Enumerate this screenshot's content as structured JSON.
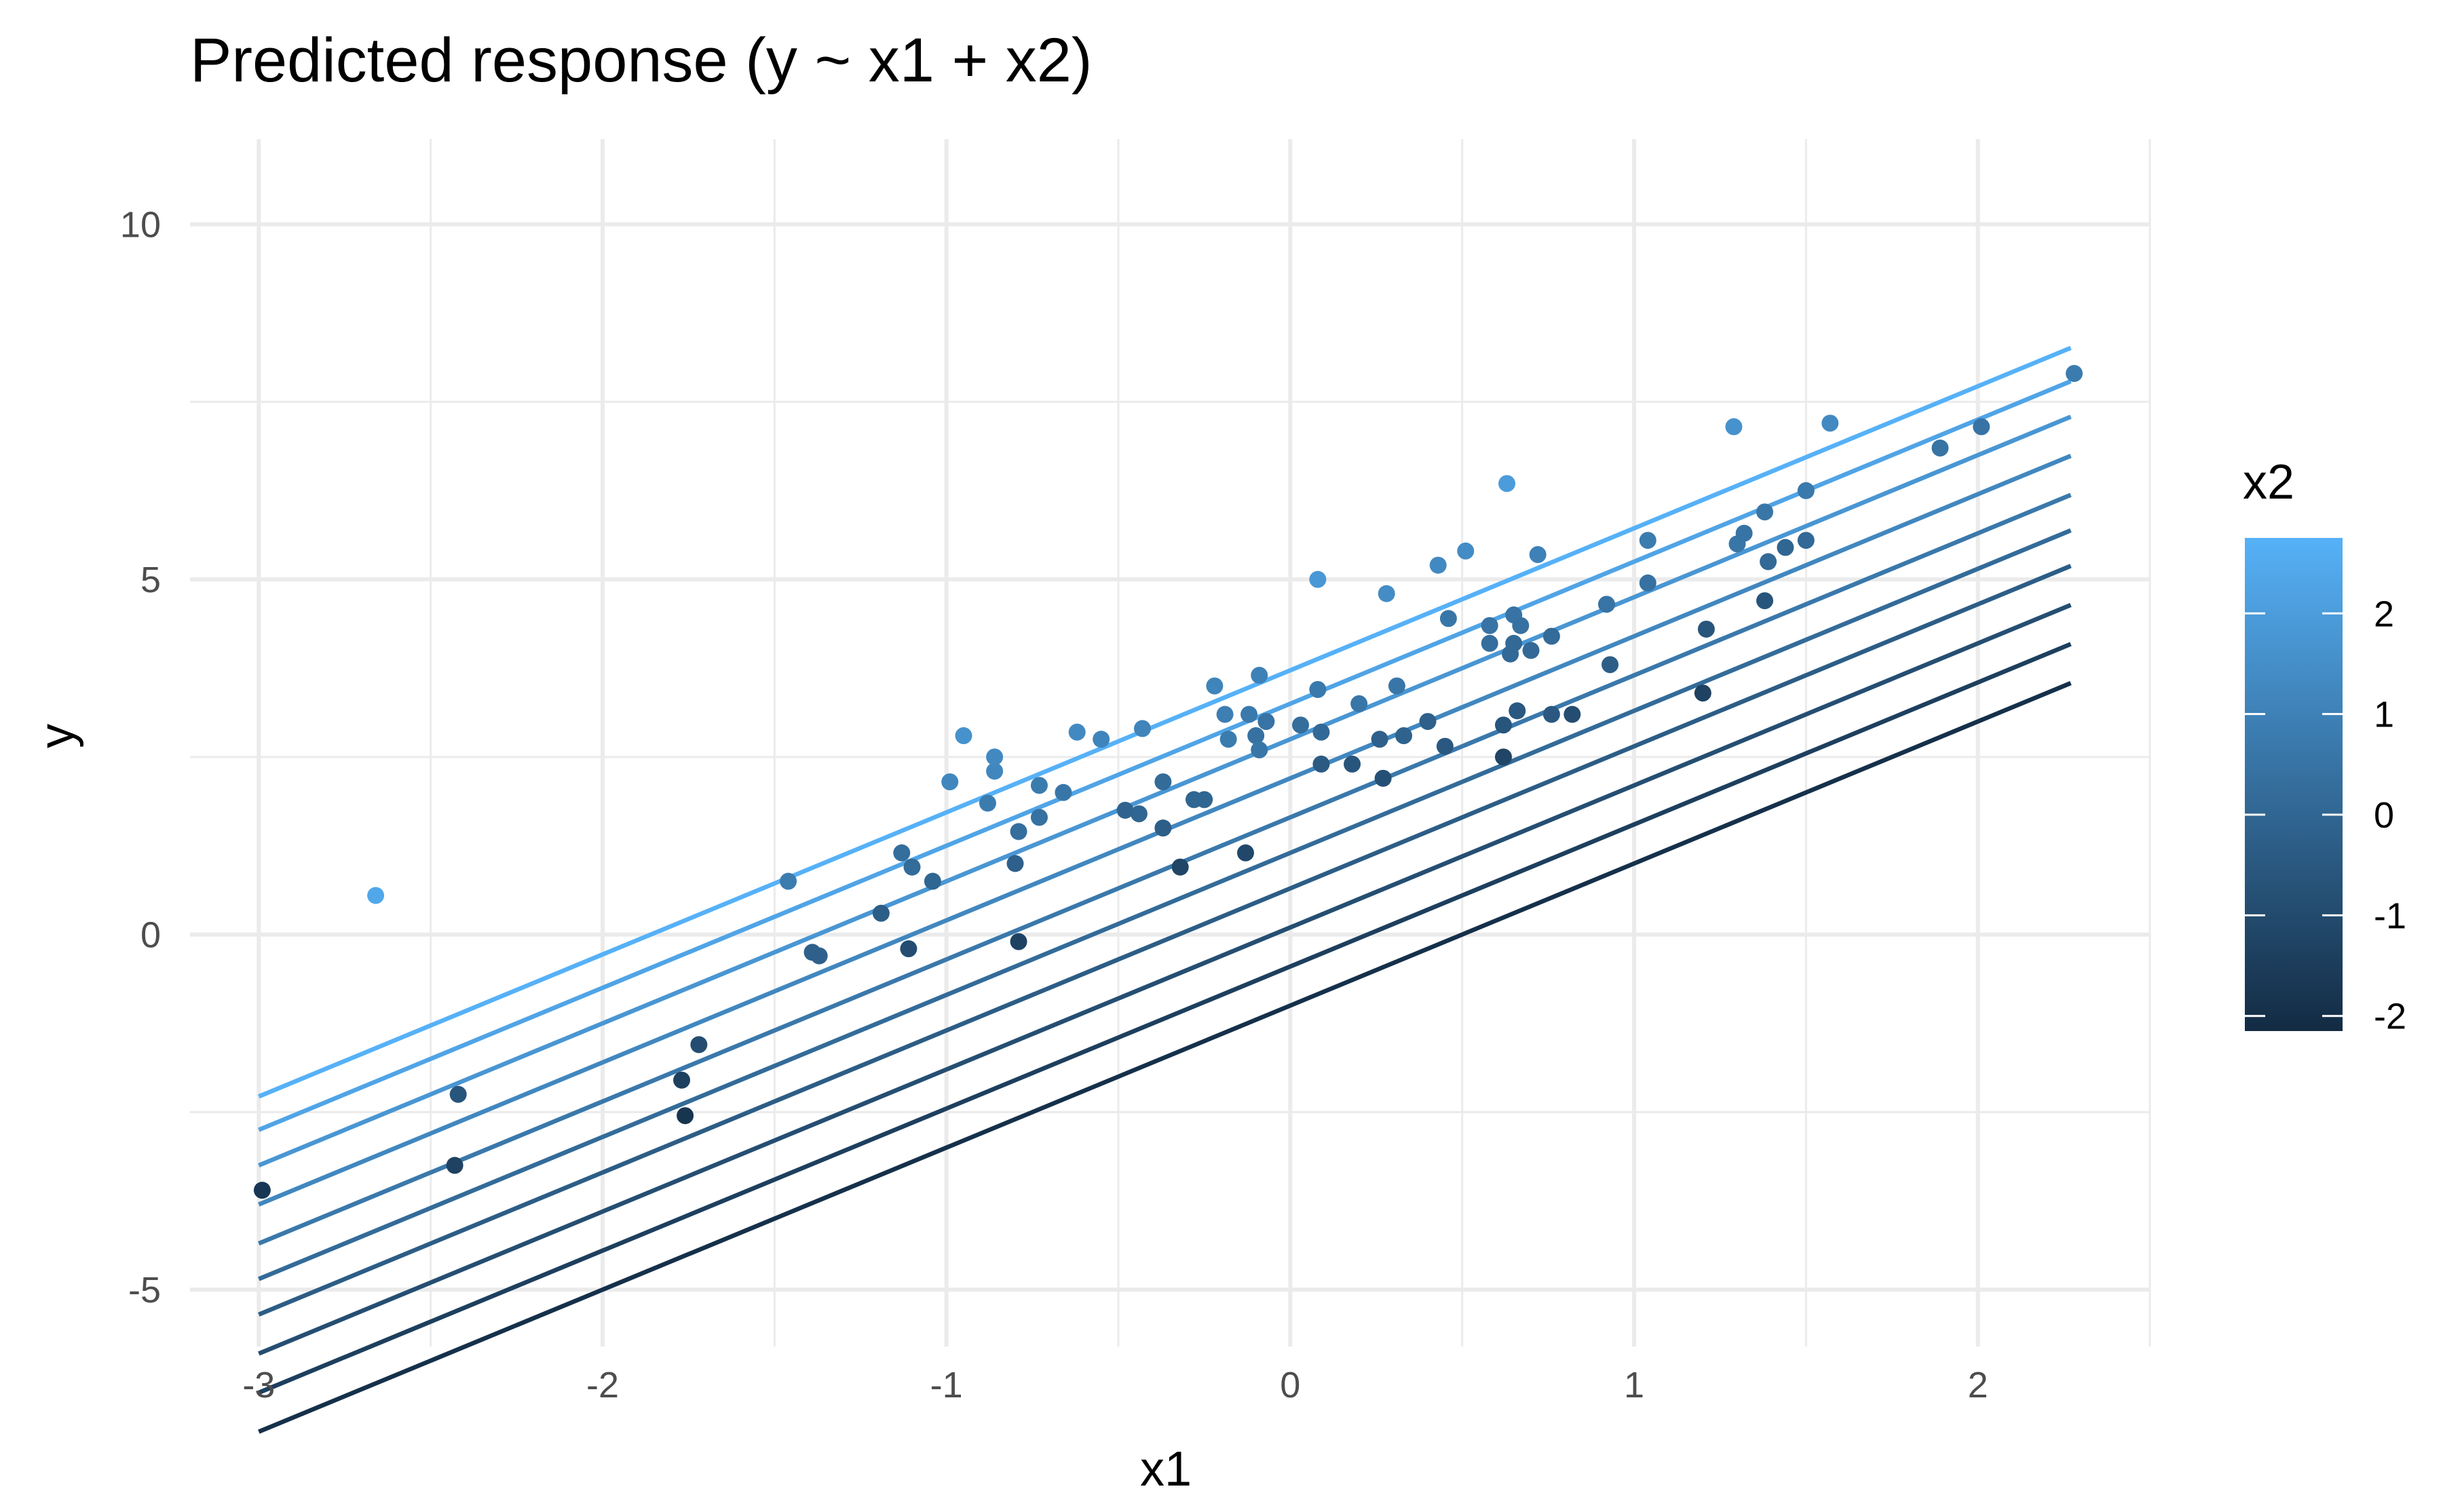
{
  "chart_data": {
    "type": "scatter",
    "title": "Predicted response (y ~ x1 + x2)",
    "xlabel": "x1",
    "ylabel": "y",
    "xlim": [
      -3.2,
      2.5
    ],
    "ylim": [
      -5.8,
      11.2
    ],
    "x_ticks": [
      -3,
      -2,
      -1,
      0,
      1,
      2
    ],
    "x_tick_labels": [
      "-3",
      "-2",
      "-1",
      "0",
      "1",
      "2"
    ],
    "y_ticks": [
      -5,
      0,
      5,
      10
    ],
    "y_tick_labels": [
      "-5",
      "0",
      "5",
      "10"
    ],
    "grid": true,
    "legend": {
      "title": "x2",
      "position": "right",
      "type": "colorbar",
      "range": [
        -2.15,
        2.75
      ],
      "ticks": [
        2,
        1,
        0,
        -1,
        -2
      ],
      "tick_labels": [
        "2",
        "1",
        "0",
        "-1",
        "-2"
      ],
      "low_color": "#132b43",
      "high_color": "#56b1f7"
    },
    "lines": {
      "x_range": [
        -3,
        2.27
      ],
      "slope": 2,
      "intercept_base": 0.97,
      "x2_coef": 1,
      "x2_levels": [
        -1.97,
        -1.42,
        -0.87,
        -0.32,
        0.18,
        0.68,
        1.23,
        1.78,
        2.28,
        2.75
      ]
    },
    "points": [
      {
        "x": -2.99,
        "y": -3.6,
        "x2": -1.7
      },
      {
        "x": -2.66,
        "y": 0.55,
        "x2": 2.4
      },
      {
        "x": -2.43,
        "y": -3.25,
        "x2": -1.3
      },
      {
        "x": -2.42,
        "y": -2.25,
        "x2": -0.6
      },
      {
        "x": -1.77,
        "y": -2.05,
        "x2": -1.4
      },
      {
        "x": -1.76,
        "y": -2.55,
        "x2": -1.8
      },
      {
        "x": -1.72,
        "y": -1.55,
        "x2": -0.9
      },
      {
        "x": -1.46,
        "y": 0.75,
        "x2": 0.8
      },
      {
        "x": -1.39,
        "y": -0.25,
        "x2": -0.2
      },
      {
        "x": -1.37,
        "y": -0.3,
        "x2": -0.2
      },
      {
        "x": -1.19,
        "y": 0.3,
        "x2": -0.3
      },
      {
        "x": -1.13,
        "y": 1.15,
        "x2": 0.3
      },
      {
        "x": -1.11,
        "y": -0.2,
        "x2": -0.9
      },
      {
        "x": -1.1,
        "y": 0.95,
        "x2": 0.2
      },
      {
        "x": -1.04,
        "y": 0.75,
        "x2": 0.0
      },
      {
        "x": -0.99,
        "y": 2.15,
        "x2": 1.2
      },
      {
        "x": -0.95,
        "y": 2.8,
        "x2": 1.6
      },
      {
        "x": -0.88,
        "y": 1.85,
        "x2": 0.8
      },
      {
        "x": -0.86,
        "y": 2.3,
        "x2": 1.2
      },
      {
        "x": -0.86,
        "y": 2.5,
        "x2": 1.3
      },
      {
        "x": -0.8,
        "y": 1.0,
        "x2": -0.2
      },
      {
        "x": -0.79,
        "y": -0.1,
        "x2": -1.3
      },
      {
        "x": -0.79,
        "y": 1.45,
        "x2": 0.3
      },
      {
        "x": -0.73,
        "y": 1.65,
        "x2": 0.4
      },
      {
        "x": -0.73,
        "y": 2.1,
        "x2": 0.8
      },
      {
        "x": -0.66,
        "y": 2.0,
        "x2": 0.6
      },
      {
        "x": -0.62,
        "y": 2.85,
        "x2": 1.3
      },
      {
        "x": -0.55,
        "y": 2.75,
        "x2": 1.1
      },
      {
        "x": -0.48,
        "y": 1.75,
        "x2": -0.1
      },
      {
        "x": -0.44,
        "y": 1.7,
        "x2": 0.0
      },
      {
        "x": -0.43,
        "y": 2.9,
        "x2": 1.1
      },
      {
        "x": -0.37,
        "y": 2.15,
        "x2": 0.2
      },
      {
        "x": -0.37,
        "y": 1.5,
        "x2": -0.3
      },
      {
        "x": -0.32,
        "y": 0.95,
        "x2": -1.2
      },
      {
        "x": -0.28,
        "y": 1.9,
        "x2": 0.0
      },
      {
        "x": -0.25,
        "y": 1.9,
        "x2": 0.0
      },
      {
        "x": -0.22,
        "y": 3.5,
        "x2": 1.1
      },
      {
        "x": -0.19,
        "y": 3.1,
        "x2": 0.9
      },
      {
        "x": -0.18,
        "y": 2.75,
        "x2": 0.8
      },
      {
        "x": -0.13,
        "y": 1.15,
        "x2": -1.1
      },
      {
        "x": -0.12,
        "y": 3.1,
        "x2": 0.7
      },
      {
        "x": -0.1,
        "y": 2.8,
        "x2": 0.4
      },
      {
        "x": -0.09,
        "y": 2.6,
        "x2": 0.6
      },
      {
        "x": -0.09,
        "y": 3.65,
        "x2": 1.0
      },
      {
        "x": -0.07,
        "y": 3.0,
        "x2": 0.5
      },
      {
        "x": 0.03,
        "y": 2.95,
        "x2": 0.3
      },
      {
        "x": 0.08,
        "y": 5.0,
        "x2": 1.8
      },
      {
        "x": 0.08,
        "y": 3.45,
        "x2": 0.7
      },
      {
        "x": 0.09,
        "y": 2.85,
        "x2": 0.1
      },
      {
        "x": 0.09,
        "y": 2.4,
        "x2": -0.4
      },
      {
        "x": 0.18,
        "y": 2.4,
        "x2": -0.6
      },
      {
        "x": 0.2,
        "y": 3.25,
        "x2": 0.6
      },
      {
        "x": 0.26,
        "y": 2.75,
        "x2": -0.2
      },
      {
        "x": 0.27,
        "y": 2.2,
        "x2": -0.8
      },
      {
        "x": 0.28,
        "y": 4.8,
        "x2": 1.4
      },
      {
        "x": 0.31,
        "y": 3.5,
        "x2": 0.6
      },
      {
        "x": 0.33,
        "y": 2.8,
        "x2": -0.1
      },
      {
        "x": 0.4,
        "y": 3.0,
        "x2": -0.2
      },
      {
        "x": 0.43,
        "y": 5.2,
        "x2": 1.3
      },
      {
        "x": 0.45,
        "y": 2.65,
        "x2": -0.5
      },
      {
        "x": 0.46,
        "y": 4.45,
        "x2": 0.6
      },
      {
        "x": 0.51,
        "y": 5.4,
        "x2": 1.4
      },
      {
        "x": 0.58,
        "y": 4.35,
        "x2": 0.5
      },
      {
        "x": 0.58,
        "y": 4.1,
        "x2": 0.3
      },
      {
        "x": 0.62,
        "y": 2.95,
        "x2": -0.6
      },
      {
        "x": 0.62,
        "y": 2.5,
        "x2": -1.2
      },
      {
        "x": 0.63,
        "y": 6.35,
        "x2": 2.0
      },
      {
        "x": 0.64,
        "y": 3.95,
        "x2": 0.1
      },
      {
        "x": 0.65,
        "y": 4.5,
        "x2": 0.5
      },
      {
        "x": 0.65,
        "y": 4.1,
        "x2": 0.1
      },
      {
        "x": 0.66,
        "y": 3.15,
        "x2": -0.5
      },
      {
        "x": 0.67,
        "y": 4.35,
        "x2": 0.4
      },
      {
        "x": 0.7,
        "y": 4.0,
        "x2": 0.1
      },
      {
        "x": 0.72,
        "y": 5.35,
        "x2": 1.0
      },
      {
        "x": 0.76,
        "y": 3.1,
        "x2": -0.5
      },
      {
        "x": 0.76,
        "y": 4.2,
        "x2": 0.2
      },
      {
        "x": 0.82,
        "y": 3.1,
        "x2": -0.9
      },
      {
        "x": 0.92,
        "y": 4.65,
        "x2": 0.5
      },
      {
        "x": 0.93,
        "y": 3.8,
        "x2": -0.3
      },
      {
        "x": 1.04,
        "y": 4.95,
        "x2": 0.4
      },
      {
        "x": 1.04,
        "y": 5.55,
        "x2": 0.8
      },
      {
        "x": 1.2,
        "y": 3.4,
        "x2": -1.3
      },
      {
        "x": 1.21,
        "y": 4.3,
        "x2": -0.6
      },
      {
        "x": 1.29,
        "y": 7.15,
        "x2": 1.6
      },
      {
        "x": 1.3,
        "y": 5.5,
        "x2": 0.6
      },
      {
        "x": 1.32,
        "y": 5.65,
        "x2": 0.5
      },
      {
        "x": 1.38,
        "y": 4.7,
        "x2": -0.6
      },
      {
        "x": 1.38,
        "y": 5.95,
        "x2": 0.6
      },
      {
        "x": 1.39,
        "y": 5.25,
        "x2": 0.1
      },
      {
        "x": 1.44,
        "y": 5.45,
        "x2": 0.0
      },
      {
        "x": 1.5,
        "y": 6.25,
        "x2": 0.7
      },
      {
        "x": 1.5,
        "y": 5.55,
        "x2": 0.1
      },
      {
        "x": 1.57,
        "y": 7.2,
        "x2": 1.3
      },
      {
        "x": 1.89,
        "y": 6.85,
        "x2": 0.5
      },
      {
        "x": 2.01,
        "y": 7.15,
        "x2": 0.5
      },
      {
        "x": 2.28,
        "y": 7.9,
        "x2": 0.8
      }
    ]
  }
}
